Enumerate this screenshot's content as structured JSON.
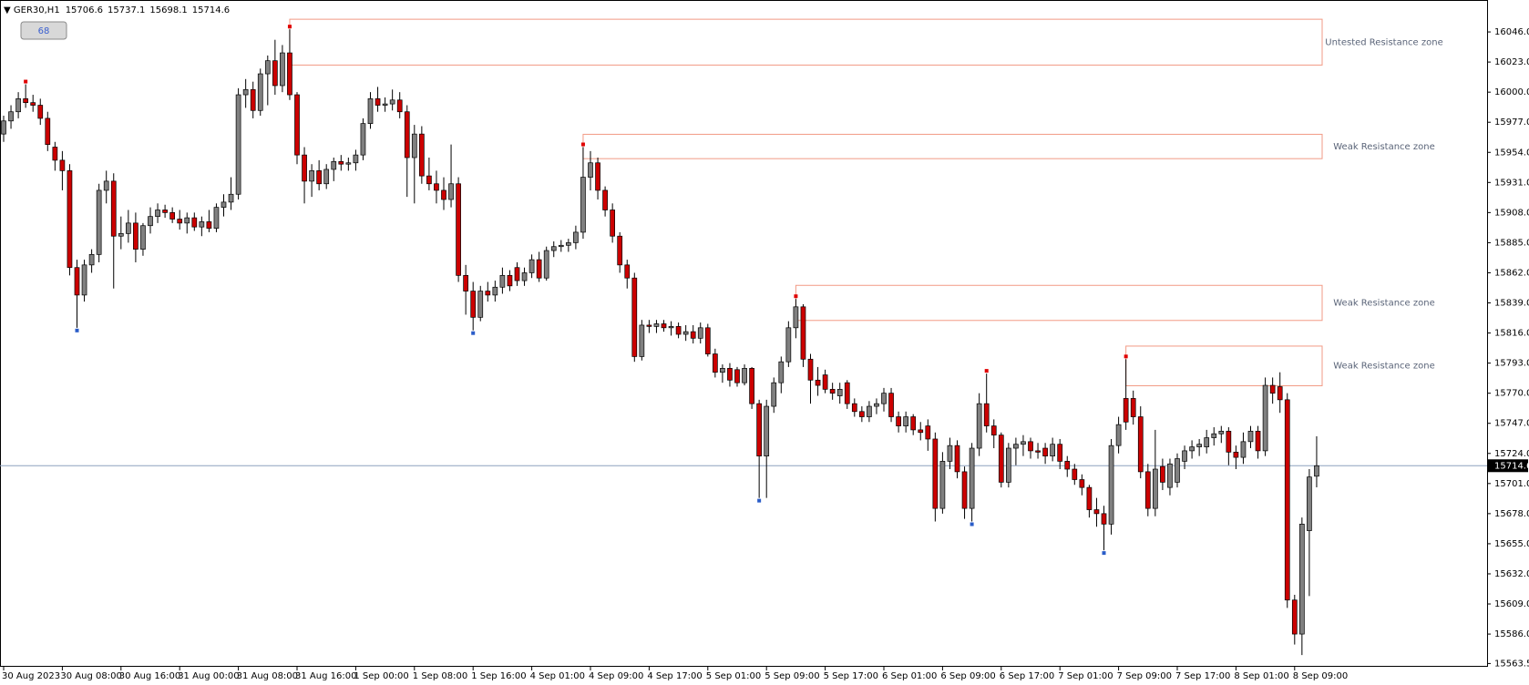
{
  "chart_data": {
    "type": "candlestick",
    "symbol": "GER30,H1",
    "button_label": "68",
    "ylim": [
      15561,
      16070.4
    ],
    "yticks": [
      {
        "value": 16046,
        "label": "16046.0"
      },
      {
        "value": 16023,
        "label": "16023.0"
      },
      {
        "value": 16000,
        "label": "16000.0"
      },
      {
        "value": 15977,
        "label": "15977.0"
      },
      {
        "value": 15954,
        "label": "15954.0"
      },
      {
        "value": 15931,
        "label": "15931.0"
      },
      {
        "value": 15908,
        "label": "15908.0"
      },
      {
        "value": 15885,
        "label": "15885.0"
      },
      {
        "value": 15862,
        "label": "15862.0"
      },
      {
        "value": 15839,
        "label": "15839.0"
      },
      {
        "value": 15816,
        "label": "15816.0"
      },
      {
        "value": 15793,
        "label": "15793.0"
      },
      {
        "value": 15770,
        "label": "15770.0"
      },
      {
        "value": 15747,
        "label": "15747.0"
      },
      {
        "value": 15724,
        "label": "15724.0"
      },
      {
        "value": 15701,
        "label": "15701.0"
      },
      {
        "value": 15678,
        "label": "15678.0"
      },
      {
        "value": 15655,
        "label": "15655.0"
      },
      {
        "value": 15632,
        "label": "15632.0"
      },
      {
        "value": 15609,
        "label": "15609.0"
      },
      {
        "value": 15586,
        "label": "15586.0"
      },
      {
        "value": 15563.5,
        "label": "15563.5"
      }
    ],
    "up_color": "#808080",
    "down_color": "#cc0000",
    "zone_color": "#f29a84",
    "price_line_color": "#8da0bd",
    "categories": [
      "30 Aug 2023",
      null,
      null,
      null,
      null,
      null,
      null,
      null,
      "30 Aug 08:00",
      null,
      null,
      null,
      null,
      null,
      null,
      null,
      "30 Aug 16:00",
      null,
      null,
      null,
      null,
      null,
      null,
      null,
      "31 Aug 00:00",
      null,
      null,
      null,
      null,
      null,
      null,
      null,
      "31 Aug 08:00",
      null,
      null,
      null,
      null,
      null,
      null,
      null,
      "31 Aug 16:00",
      null,
      null,
      null,
      null,
      null,
      null,
      null,
      "1 Sep 00:00",
      null,
      null,
      null,
      null,
      null,
      null,
      null,
      "1 Sep 08:00",
      null,
      null,
      null,
      null,
      null,
      null,
      null,
      "1 Sep 16:00",
      null,
      null,
      null,
      null,
      null,
      null,
      null,
      "4 Sep 01:00",
      null,
      null,
      null,
      null,
      null,
      null,
      null,
      "4 Sep 09:00",
      null,
      null,
      null,
      null,
      null,
      null,
      null,
      "4 Sep 17:00",
      null,
      null,
      null,
      null,
      null,
      null,
      null,
      "5 Sep 01:00",
      null,
      null,
      null,
      null,
      null,
      null,
      null,
      "5 Sep 09:00",
      null,
      null,
      null,
      null,
      null,
      null,
      null,
      "5 Sep 17:00",
      null,
      null,
      null,
      null,
      null,
      null,
      null,
      "6 Sep 01:00",
      null,
      null,
      null,
      null,
      null,
      null,
      null,
      "6 Sep 09:00",
      null,
      null,
      null,
      null,
      null,
      null,
      null,
      "6 Sep 17:00",
      null,
      null,
      null,
      null,
      null,
      null,
      null,
      "7 Sep 01:00",
      null,
      null,
      null,
      null,
      null,
      null,
      null,
      "7 Sep 09:00",
      null,
      null,
      null,
      null,
      null,
      null,
      null,
      "7 Sep 17:00",
      null,
      null,
      null,
      null,
      null,
      null,
      null,
      "8 Sep 01:00",
      null,
      null,
      null,
      null,
      null,
      null,
      null,
      "8 Sep 09:00",
      null,
      null,
      null
    ],
    "ohlc": [
      [
        15968,
        15982,
        15962,
        15978
      ],
      [
        15978,
        15990,
        15972,
        15985
      ],
      [
        15985,
        16000,
        15980,
        15995
      ],
      [
        15995,
        16006,
        15988,
        15992
      ],
      [
        15992,
        15998,
        15985,
        15990
      ],
      [
        15990,
        15995,
        15975,
        15980
      ],
      [
        15980,
        15985,
        15955,
        15960
      ],
      [
        15958,
        15962,
        15940,
        15948
      ],
      [
        15948,
        15955,
        15925,
        15940
      ],
      [
        15940,
        15945,
        15860,
        15866
      ],
      [
        15866,
        15872,
        15820,
        15845
      ],
      [
        15845,
        15872,
        15840,
        15868
      ],
      [
        15868,
        15880,
        15862,
        15876
      ],
      [
        15876,
        15930,
        15870,
        15925
      ],
      [
        15925,
        15940,
        15915,
        15932
      ],
      [
        15932,
        15938,
        15850,
        15890
      ],
      [
        15890,
        15905,
        15880,
        15892
      ],
      [
        15892,
        15910,
        15885,
        15900
      ],
      [
        15900,
        15908,
        15870,
        15880
      ],
      [
        15880,
        15900,
        15875,
        15898
      ],
      [
        15898,
        15912,
        15892,
        15905
      ],
      [
        15905,
        15915,
        15900,
        15910
      ],
      [
        15910,
        15914,
        15904,
        15908
      ],
      [
        15908,
        15912,
        15900,
        15903
      ],
      [
        15903,
        15910,
        15895,
        15900
      ],
      [
        15900,
        15908,
        15892,
        15904
      ],
      [
        15904,
        15908,
        15894,
        15897
      ],
      [
        15897,
        15905,
        15890,
        15901
      ],
      [
        15901,
        15910,
        15893,
        15896
      ],
      [
        15896,
        15915,
        15893,
        15912
      ],
      [
        15912,
        15922,
        15905,
        15916
      ],
      [
        15916,
        15935,
        15910,
        15922
      ],
      [
        15922,
        16003,
        15918,
        15998
      ],
      [
        15998,
        16010,
        15988,
        16002
      ],
      [
        16002,
        16008,
        15980,
        15986
      ],
      [
        15986,
        16018,
        15982,
        16014
      ],
      [
        16014,
        16028,
        15990,
        16024
      ],
      [
        16024,
        16040,
        15998,
        16005
      ],
      [
        16005,
        16036,
        16000,
        16030
      ],
      [
        16030,
        16048,
        15994,
        15998
      ],
      [
        15998,
        16000,
        15945,
        15952
      ],
      [
        15952,
        15958,
        15915,
        15932
      ],
      [
        15932,
        15945,
        15920,
        15940
      ],
      [
        15940,
        15948,
        15925,
        15930
      ],
      [
        15930,
        15945,
        15926,
        15941
      ],
      [
        15941,
        15950,
        15932,
        15947
      ],
      [
        15947,
        15952,
        15940,
        15945
      ],
      [
        15945,
        15950,
        15940,
        15946
      ],
      [
        15946,
        15956,
        15940,
        15952
      ],
      [
        15952,
        15980,
        15948,
        15976
      ],
      [
        15976,
        16000,
        15972,
        15995
      ],
      [
        15995,
        16004,
        15985,
        15990
      ],
      [
        15990,
        15996,
        15985,
        15991
      ],
      [
        15991,
        16002,
        15986,
        15994
      ],
      [
        15994,
        16000,
        15980,
        15985
      ],
      [
        15985,
        15990,
        15920,
        15950
      ],
      [
        15950,
        15975,
        15915,
        15968
      ],
      [
        15968,
        15974,
        15930,
        15936
      ],
      [
        15936,
        15950,
        15925,
        15930
      ],
      [
        15930,
        15940,
        15915,
        15925
      ],
      [
        15925,
        15935,
        15910,
        15918
      ],
      [
        15918,
        15960,
        15912,
        15930
      ],
      [
        15930,
        15935,
        15855,
        15860
      ],
      [
        15860,
        15868,
        15830,
        15848
      ],
      [
        15848,
        15855,
        15818,
        15828
      ],
      [
        15828,
        15852,
        15825,
        15848
      ],
      [
        15848,
        15855,
        15840,
        15845
      ],
      [
        15845,
        15856,
        15840,
        15851
      ],
      [
        15851,
        15866,
        15846,
        15860
      ],
      [
        15860,
        15864,
        15848,
        15852
      ],
      [
        15866,
        15870,
        15852,
        15856
      ],
      [
        15856,
        15866,
        15852,
        15862
      ],
      [
        15862,
        15876,
        15858,
        15872
      ],
      [
        15872,
        15878,
        15855,
        15858
      ],
      [
        15858,
        15882,
        15856,
        15879
      ],
      [
        15879,
        15886,
        15874,
        15882
      ],
      [
        15882,
        15887,
        15878,
        15883
      ],
      [
        15883,
        15888,
        15878,
        15885
      ],
      [
        15885,
        15898,
        15880,
        15893
      ],
      [
        15893,
        15958,
        15888,
        15935
      ],
      [
        15935,
        15955,
        15925,
        15946
      ],
      [
        15946,
        15950,
        15918,
        15925
      ],
      [
        15925,
        15928,
        15905,
        15910
      ],
      [
        15910,
        15915,
        15885,
        15890
      ],
      [
        15890,
        15893,
        15862,
        15868
      ],
      [
        15868,
        15872,
        15850,
        15858
      ],
      [
        15858,
        15862,
        15794,
        15798
      ],
      [
        15798,
        15826,
        15795,
        15822
      ],
      [
        15822,
        15826,
        15816,
        15821
      ],
      [
        15821,
        15826,
        15816,
        15823
      ],
      [
        15823,
        15826,
        15817,
        15820
      ],
      [
        15820,
        15825,
        15814,
        15821
      ],
      [
        15821,
        15824,
        15812,
        15815
      ],
      [
        15815,
        15822,
        15810,
        15817
      ],
      [
        15817,
        15822,
        15808,
        15812
      ],
      [
        15812,
        15824,
        15808,
        15820
      ],
      [
        15820,
        15823,
        15798,
        15800
      ],
      [
        15800,
        15804,
        15782,
        15786
      ],
      [
        15786,
        15792,
        15778,
        15789
      ],
      [
        15789,
        15793,
        15775,
        15780
      ],
      [
        15788,
        15790,
        15775,
        15778
      ],
      [
        15778,
        15792,
        15776,
        15789
      ],
      [
        15789,
        15790,
        15758,
        15762
      ],
      [
        15762,
        15765,
        15690,
        15722
      ],
      [
        15722,
        15765,
        15690,
        15760
      ],
      [
        15760,
        15782,
        15755,
        15778
      ],
      [
        15778,
        15798,
        15770,
        15794
      ],
      [
        15794,
        15825,
        15790,
        15820
      ],
      [
        15820,
        15842,
        15812,
        15836
      ],
      [
        15836,
        15838,
        15790,
        15796
      ],
      [
        15796,
        15800,
        15762,
        15780
      ],
      [
        15780,
        15790,
        15768,
        15776
      ],
      [
        15784,
        15788,
        15770,
        15773
      ],
      [
        15773,
        15778,
        15765,
        15770
      ],
      [
        15768,
        15778,
        15762,
        15773
      ],
      [
        15778,
        15780,
        15758,
        15762
      ],
      [
        15762,
        15766,
        15752,
        15756
      ],
      [
        15756,
        15760,
        15748,
        15752
      ],
      [
        15752,
        15764,
        15748,
        15760
      ],
      [
        15760,
        15766,
        15754,
        15762
      ],
      [
        15762,
        15774,
        15756,
        15770
      ],
      [
        15770,
        15774,
        15748,
        15752
      ],
      [
        15752,
        15756,
        15740,
        15745
      ],
      [
        15745,
        15756,
        15740,
        15752
      ],
      [
        15752,
        15754,
        15738,
        15742
      ],
      [
        15742,
        15748,
        15734,
        15740
      ],
      [
        15745,
        15750,
        15726,
        15735
      ],
      [
        15735,
        15740,
        15672,
        15682
      ],
      [
        15682,
        15725,
        15678,
        15718
      ],
      [
        15718,
        15736,
        15712,
        15730
      ],
      [
        15730,
        15734,
        15705,
        15710
      ],
      [
        15710,
        15714,
        15674,
        15682
      ],
      [
        15682,
        15732,
        15672,
        15728
      ],
      [
        15728,
        15770,
        15722,
        15762
      ],
      [
        15762,
        15785,
        15740,
        15745
      ],
      [
        15745,
        15750,
        15728,
        15738
      ],
      [
        15738,
        15740,
        15698,
        15702
      ],
      [
        15702,
        15732,
        15698,
        15728
      ],
      [
        15728,
        15736,
        15715,
        15731
      ],
      [
        15731,
        15738,
        15722,
        15733
      ],
      [
        15733,
        15736,
        15720,
        15726
      ],
      [
        15726,
        15732,
        15720,
        15725
      ],
      [
        15728,
        15732,
        15716,
        15722
      ],
      [
        15722,
        15736,
        15718,
        15731
      ],
      [
        15731,
        15735,
        15712,
        15718
      ],
      [
        15718,
        15722,
        15706,
        15712
      ],
      [
        15712,
        15716,
        15700,
        15704
      ],
      [
        15704,
        15708,
        15692,
        15698
      ],
      [
        15698,
        15700,
        15675,
        15681
      ],
      [
        15681,
        15690,
        15668,
        15678
      ],
      [
        15678,
        15684,
        15650,
        15670
      ],
      [
        15670,
        15735,
        15662,
        15730
      ],
      [
        15730,
        15752,
        15724,
        15746
      ],
      [
        15766,
        15796,
        15742,
        15748
      ],
      [
        15766,
        15772,
        15746,
        15752
      ],
      [
        15752,
        15760,
        15705,
        15710
      ],
      [
        15710,
        15716,
        15676,
        15682
      ],
      [
        15682,
        15742,
        15676,
        15712
      ],
      [
        15714,
        15720,
        15696,
        15702
      ],
      [
        15698,
        15720,
        15692,
        15716
      ],
      [
        15702,
        15724,
        15698,
        15720
      ],
      [
        15718,
        15730,
        15712,
        15726
      ],
      [
        15726,
        15734,
        15720,
        15729
      ],
      [
        15729,
        15735,
        15722,
        15731
      ],
      [
        15729,
        15742,
        15724,
        15736
      ],
      [
        15736,
        15744,
        15730,
        15739
      ],
      [
        15739,
        15745,
        15732,
        15741
      ],
      [
        15741,
        15744,
        15715,
        15725
      ],
      [
        15725,
        15730,
        15712,
        15721
      ],
      [
        15721,
        15740,
        15716,
        15733
      ],
      [
        15733,
        15745,
        15728,
        15741
      ],
      [
        15741,
        15745,
        15720,
        15726
      ],
      [
        15726,
        15782,
        15722,
        15776
      ],
      [
        15776,
        15782,
        15762,
        15770
      ],
      [
        15775,
        15786,
        15755,
        15765
      ],
      [
        15765,
        15770,
        15606,
        15612
      ],
      [
        15612,
        15616,
        15578,
        15586
      ],
      [
        15586,
        15675,
        15570,
        15670
      ],
      [
        15665,
        15712,
        15615,
        15706
      ],
      [
        15706.6,
        15737.1,
        15698.1,
        15714.6
      ]
    ],
    "zones": [
      {
        "label": "Untested Resistance zone",
        "top": 16055.7,
        "bottom": 16020.7
      },
      {
        "label": "Weak Resistance zone",
        "top": 15967.8,
        "bottom": 15949.2
      },
      {
        "label": "Weak Resistance zone",
        "top": 15852.4,
        "bottom": 15825.6
      },
      {
        "label": "Weak Resistance zone",
        "top": 15806,
        "bottom": 15775.7
      }
    ]
  }
}
